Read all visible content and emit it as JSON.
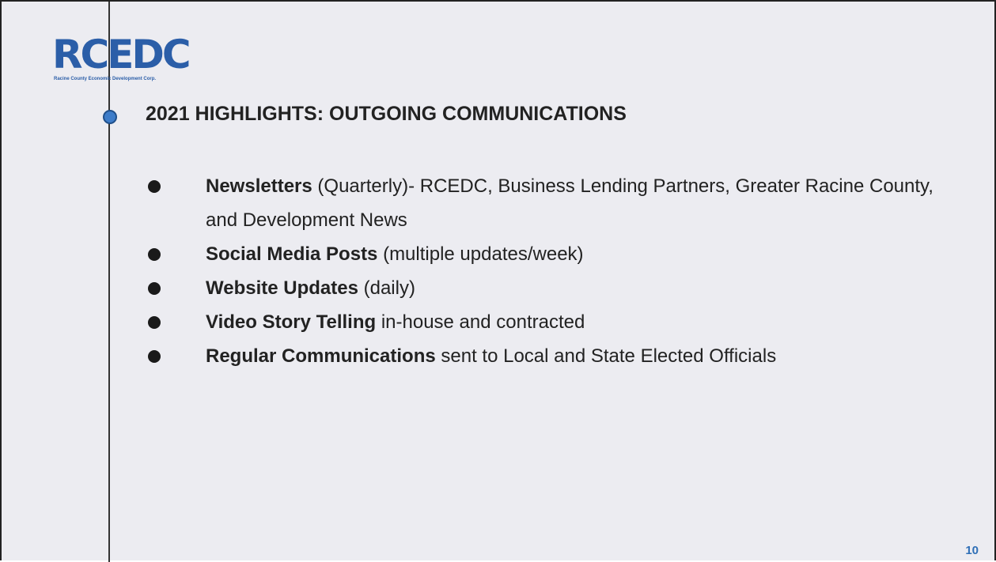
{
  "logo": {
    "text": "RCEDC",
    "tagline": "Racine County Economic Development Corp."
  },
  "title": "2021 HIGHLIGHTS: OUTGOING COMMUNICATIONS",
  "bullets": [
    {
      "bold": "Newsletters",
      "rest": " (Quarterly)- RCEDC, Business Lending Partners, Greater Racine County, and Development News"
    },
    {
      "bold": "Social Media Posts",
      "rest": " (multiple updates/week)"
    },
    {
      "bold": "Website Updates",
      "rest": " (daily)"
    },
    {
      "bold": "Video Story Telling",
      "rest": " in-house and contracted"
    },
    {
      "bold": "Regular Communications",
      "rest": " sent to Local and State Elected Officials"
    }
  ],
  "page_number": "10"
}
